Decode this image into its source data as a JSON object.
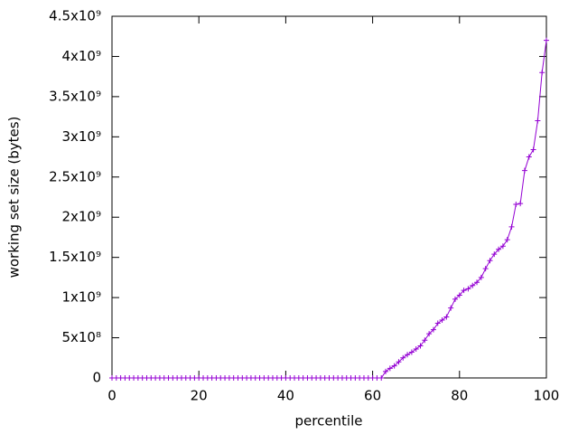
{
  "chart_data": {
    "type": "line",
    "x_label": "percentile",
    "y_label": "working set size (bytes)",
    "x": [
      0,
      1,
      2,
      3,
      4,
      5,
      6,
      7,
      8,
      9,
      10,
      11,
      12,
      13,
      14,
      15,
      16,
      17,
      18,
      19,
      20,
      21,
      22,
      23,
      24,
      25,
      26,
      27,
      28,
      29,
      30,
      31,
      32,
      33,
      34,
      35,
      36,
      37,
      38,
      39,
      40,
      41,
      42,
      43,
      44,
      45,
      46,
      47,
      48,
      49,
      50,
      51,
      52,
      53,
      54,
      55,
      56,
      57,
      58,
      59,
      60,
      61,
      62,
      63,
      64,
      65,
      66,
      67,
      68,
      69,
      70,
      71,
      72,
      73,
      74,
      75,
      76,
      77,
      78,
      79,
      80,
      81,
      82,
      83,
      84,
      85,
      86,
      87,
      88,
      89,
      90,
      91,
      92,
      93,
      94,
      95,
      96,
      97,
      98,
      99,
      100
    ],
    "series": [
      {
        "color": "#9400d3",
        "values": [
          0,
          0,
          0,
          0,
          0,
          0,
          0,
          0,
          0,
          0,
          0,
          0,
          0,
          0,
          0,
          0,
          0,
          0,
          0,
          0,
          0,
          0,
          0,
          0,
          0,
          0,
          0,
          0,
          0,
          0,
          0,
          0,
          0,
          0,
          0,
          0,
          0,
          0,
          0,
          0,
          0,
          0,
          0,
          0,
          0,
          0,
          0,
          0,
          0,
          0,
          0,
          0,
          0,
          0,
          0,
          0,
          0,
          0,
          0,
          0,
          0,
          0,
          0,
          80000000,
          120000000,
          150000000,
          200000000,
          250000000,
          290000000,
          320000000,
          360000000,
          400000000,
          470000000,
          550000000,
          600000000,
          680000000,
          720000000,
          760000000,
          870000000,
          980000000,
          1030000000,
          1090000000,
          1110000000,
          1150000000,
          1190000000,
          1250000000,
          1360000000,
          1460000000,
          1540000000,
          1600000000,
          1640000000,
          1720000000,
          1880000000,
          2160000000,
          2170000000,
          2580000000,
          2750000000,
          2840000000,
          3200000000,
          3800000000,
          4200000000
        ]
      }
    ],
    "xlim": [
      0,
      100
    ],
    "xticks": [
      0,
      20,
      40,
      60,
      80,
      100
    ],
    "ylim": [
      0,
      4500000000
    ],
    "yticks": [
      0,
      {
        "value": 500000000,
        "label": "5x10⁸"
      },
      {
        "value": 1000000000,
        "label": "1x10⁹"
      },
      {
        "value": 1500000000,
        "label": "1.5x10⁹"
      },
      {
        "value": 2000000000,
        "label": "2x10⁹"
      },
      {
        "value": 2500000000,
        "label": "2.5x10⁹"
      },
      {
        "value": 3000000000,
        "label": "3x10⁹"
      },
      {
        "value": 3500000000,
        "label": "3.5x10⁹"
      },
      {
        "value": 4000000000,
        "label": "4x10⁹"
      },
      {
        "value": 4500000000,
        "label": "4.5x10⁹"
      }
    ]
  }
}
